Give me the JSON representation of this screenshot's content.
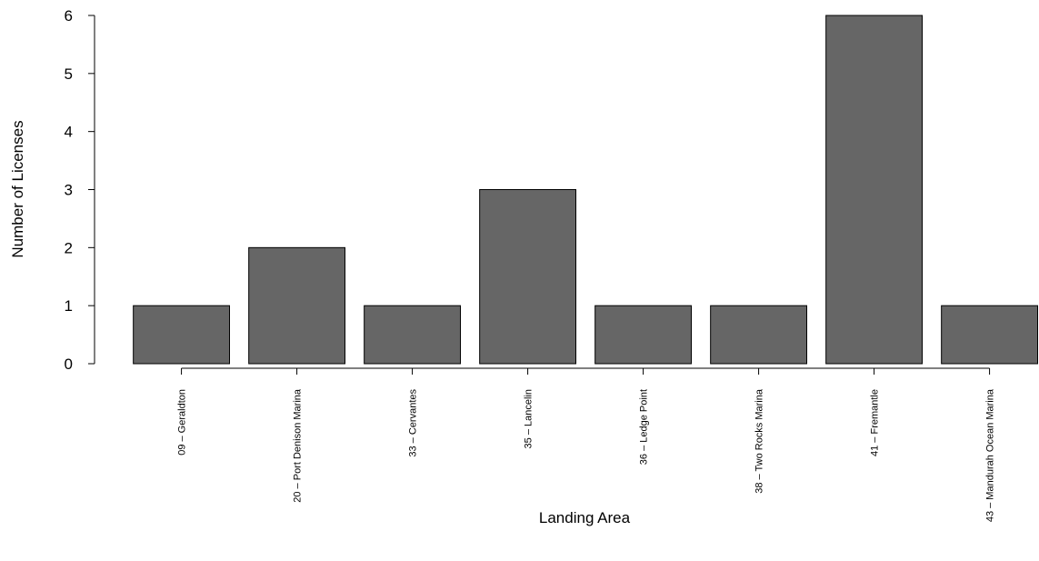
{
  "chart_data": {
    "type": "bar",
    "x_label": "Landing Area",
    "y_label": "Number of Licenses",
    "categories": [
      "09 – Geraldton",
      "20 – Port Denison Marina",
      "33 – Cervantes",
      "35 – Lancelin",
      "36 – Ledge Point",
      "38 – Two Rocks Marina",
      "41 – Fremantle",
      "43 – Mandurah Ocean Marina"
    ],
    "values": [
      1,
      2,
      1,
      3,
      1,
      1,
      6,
      1
    ],
    "color": "#666666",
    "ylim": [
      0,
      6
    ],
    "yticks": [
      0,
      1,
      2,
      3,
      4,
      5,
      6
    ]
  }
}
